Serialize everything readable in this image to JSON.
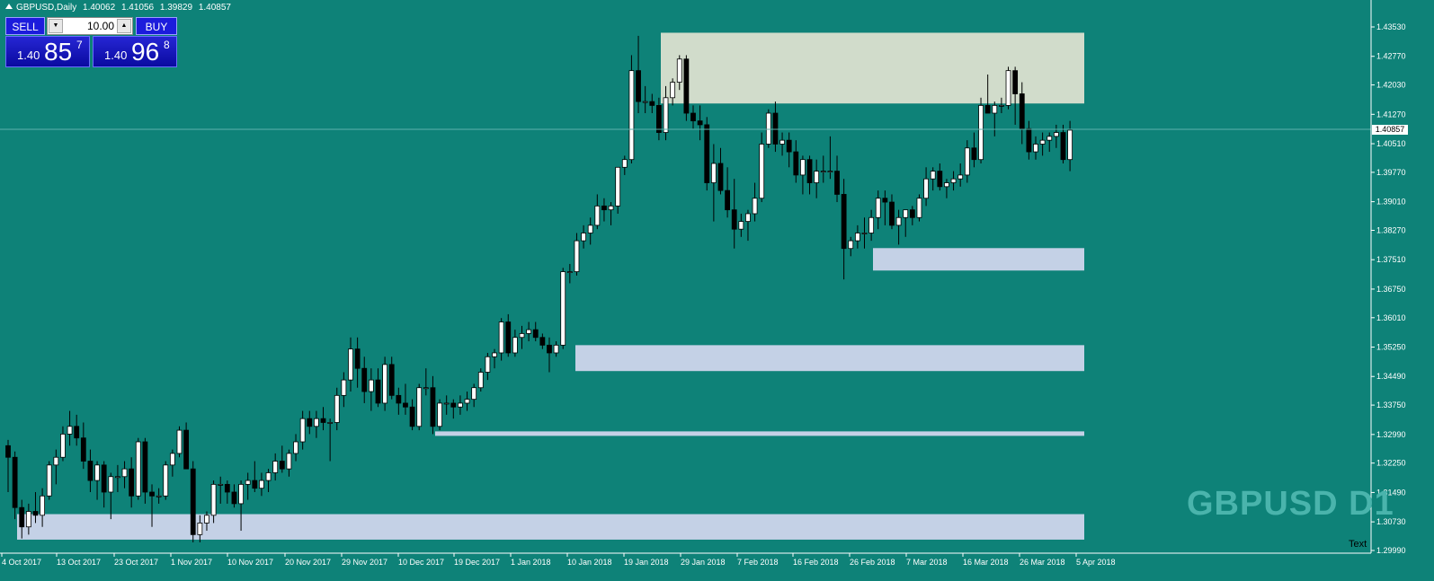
{
  "header": {
    "symbol_tf": "GBPUSD,Daily",
    "open": "1.40062",
    "high": "1.41056",
    "low": "1.39829",
    "close": "1.40857"
  },
  "trade_panel": {
    "sell_label": "SELL",
    "buy_label": "BUY",
    "volume": "10.00",
    "sell_price_small": "1.40",
    "sell_price_big": "85",
    "sell_price_sup": "7",
    "buy_price_small": "1.40",
    "buy_price_big": "96",
    "buy_price_sup": "8"
  },
  "watermark": "GBPUSD D1",
  "text_label": "Text",
  "current_price": "1.40857",
  "colors": {
    "background": "#0e8278",
    "axis_bg": "#ffffff",
    "bull_candle": "#ffffff",
    "bear_candle": "#000000",
    "supply_zone": "#d1dccb",
    "demand_zone": "#c4d1e6",
    "watermark": "#4ab4ac"
  },
  "chart_data": {
    "type": "candlestick",
    "price_ticks": [
      "1.43530",
      "1.42770",
      "1.42030",
      "1.41270",
      "1.40510",
      "1.39770",
      "1.39010",
      "1.38270",
      "1.37510",
      "1.36750",
      "1.36010",
      "1.35250",
      "1.34490",
      "1.33750",
      "1.32990",
      "1.32250",
      "1.31490",
      "1.30730",
      "1.29990"
    ],
    "date_ticks": [
      "4 Oct 2017",
      "13 Oct 2017",
      "23 Oct 2017",
      "1 Nov 2017",
      "10 Nov 2017",
      "20 Nov 2017",
      "29 Nov 2017",
      "10 Dec 2017",
      "19 Dec 2017",
      "1 Jan 2018",
      "10 Jan 2018",
      "19 Jan 2018",
      "29 Jan 2018",
      "7 Feb 2018",
      "16 Feb 2018",
      "26 Feb 2018",
      "7 Mar 2018",
      "16 Mar 2018",
      "26 Mar 2018",
      "5 Apr 2018"
    ],
    "ylim": [
      1.2975,
      1.4375
    ],
    "zones": [
      {
        "kind": "supply",
        "start": "22 Jan 2018",
        "end": "5 Apr 2018",
        "top": 1.4338,
        "bottom": 1.4155
      },
      {
        "kind": "demand",
        "start": "1 Mar 2018",
        "end": "5 Apr 2018",
        "top": 1.3781,
        "bottom": 1.3723
      },
      {
        "kind": "demand",
        "start": "11 Jan 2018",
        "end": "5 Apr 2018",
        "top": 1.353,
        "bottom": 1.3463
      },
      {
        "kind": "demand",
        "start": "20 Dec 2017",
        "end": "5 Apr 2018",
        "top": 1.3307,
        "bottom": 1.3296
      },
      {
        "kind": "demand",
        "start": "5 Oct 2017",
        "end": "5 Apr 2018",
        "top": 1.3093,
        "bottom": 1.3027
      }
    ],
    "candles": [
      [
        1.327,
        1.3285,
        1.315,
        1.324
      ],
      [
        1.324,
        1.3255,
        1.308,
        1.311
      ],
      [
        1.311,
        1.313,
        1.303,
        1.306
      ],
      [
        1.306,
        1.312,
        1.304,
        1.31
      ],
      [
        1.31,
        1.315,
        1.307,
        1.309
      ],
      [
        1.309,
        1.316,
        1.306,
        1.314
      ],
      [
        1.314,
        1.323,
        1.313,
        1.322
      ],
      [
        1.322,
        1.326,
        1.317,
        1.324
      ],
      [
        1.324,
        1.332,
        1.323,
        1.33
      ],
      [
        1.33,
        1.336,
        1.327,
        1.332
      ],
      [
        1.332,
        1.335,
        1.327,
        1.329
      ],
      [
        1.329,
        1.333,
        1.321,
        1.323
      ],
      [
        1.323,
        1.326,
        1.315,
        1.318
      ],
      [
        1.318,
        1.323,
        1.313,
        1.322
      ],
      [
        1.322,
        1.323,
        1.311,
        1.315
      ],
      [
        1.315,
        1.32,
        1.308,
        1.319
      ],
      [
        1.319,
        1.322,
        1.315,
        1.319
      ],
      [
        1.319,
        1.323,
        1.316,
        1.321
      ],
      [
        1.321,
        1.324,
        1.311,
        1.314
      ],
      [
        1.314,
        1.329,
        1.313,
        1.328
      ],
      [
        1.328,
        1.329,
        1.312,
        1.315
      ],
      [
        1.315,
        1.317,
        1.306,
        1.314
      ],
      [
        1.314,
        1.316,
        1.312,
        1.314
      ],
      [
        1.314,
        1.323,
        1.313,
        1.322
      ],
      [
        1.322,
        1.326,
        1.319,
        1.325
      ],
      [
        1.325,
        1.332,
        1.324,
        1.331
      ],
      [
        1.331,
        1.333,
        1.321,
        1.321
      ],
      [
        1.321,
        1.323,
        1.302,
        1.304
      ],
      [
        1.304,
        1.309,
        1.302,
        1.307
      ],
      [
        1.307,
        1.31,
        1.305,
        1.309
      ],
      [
        1.309,
        1.318,
        1.307,
        1.317
      ],
      [
        1.317,
        1.319,
        1.312,
        1.317
      ],
      [
        1.317,
        1.318,
        1.312,
        1.315
      ],
      [
        1.315,
        1.317,
        1.311,
        1.312
      ],
      [
        1.312,
        1.318,
        1.305,
        1.317
      ],
      [
        1.317,
        1.32,
        1.313,
        1.318
      ],
      [
        1.318,
        1.323,
        1.315,
        1.316
      ],
      [
        1.316,
        1.32,
        1.314,
        1.318
      ],
      [
        1.318,
        1.321,
        1.315,
        1.32
      ],
      [
        1.32,
        1.325,
        1.318,
        1.323
      ],
      [
        1.323,
        1.327,
        1.32,
        1.321
      ],
      [
        1.321,
        1.326,
        1.319,
        1.325
      ],
      [
        1.325,
        1.33,
        1.323,
        1.328
      ],
      [
        1.328,
        1.336,
        1.326,
        1.334
      ],
      [
        1.334,
        1.336,
        1.33,
        1.332
      ],
      [
        1.332,
        1.336,
        1.329,
        1.334
      ],
      [
        1.334,
        1.337,
        1.331,
        1.333
      ],
      [
        1.333,
        1.334,
        1.323,
        1.333
      ],
      [
        1.333,
        1.342,
        1.331,
        1.34
      ],
      [
        1.34,
        1.346,
        1.337,
        1.344
      ],
      [
        1.344,
        1.355,
        1.341,
        1.352
      ],
      [
        1.352,
        1.355,
        1.342,
        1.347
      ],
      [
        1.347,
        1.35,
        1.338,
        1.341
      ],
      [
        1.341,
        1.347,
        1.336,
        1.344
      ],
      [
        1.344,
        1.347,
        1.337,
        1.338
      ],
      [
        1.338,
        1.35,
        1.336,
        1.348
      ],
      [
        1.348,
        1.35,
        1.339,
        1.34
      ],
      [
        1.34,
        1.342,
        1.335,
        1.338
      ],
      [
        1.338,
        1.343,
        1.335,
        1.337
      ],
      [
        1.337,
        1.339,
        1.331,
        1.332
      ],
      [
        1.332,
        1.343,
        1.331,
        1.342
      ],
      [
        1.342,
        1.347,
        1.34,
        1.342
      ],
      [
        1.342,
        1.345,
        1.33,
        1.332
      ],
      [
        1.332,
        1.339,
        1.331,
        1.338
      ],
      [
        1.338,
        1.34,
        1.335,
        1.338
      ],
      [
        1.338,
        1.339,
        1.334,
        1.337
      ],
      [
        1.337,
        1.34,
        1.335,
        1.338
      ],
      [
        1.338,
        1.341,
        1.336,
        1.339
      ],
      [
        1.339,
        1.343,
        1.337,
        1.342
      ],
      [
        1.342,
        1.347,
        1.341,
        1.346
      ],
      [
        1.346,
        1.351,
        1.344,
        1.35
      ],
      [
        1.35,
        1.352,
        1.347,
        1.351
      ],
      [
        1.351,
        1.36,
        1.349,
        1.359
      ],
      [
        1.359,
        1.361,
        1.35,
        1.351
      ],
      [
        1.351,
        1.357,
        1.35,
        1.355
      ],
      [
        1.355,
        1.358,
        1.352,
        1.356
      ],
      [
        1.356,
        1.359,
        1.354,
        1.357
      ],
      [
        1.357,
        1.359,
        1.354,
        1.355
      ],
      [
        1.355,
        1.356,
        1.352,
        1.353
      ],
      [
        1.353,
        1.355,
        1.346,
        1.351
      ],
      [
        1.351,
        1.354,
        1.35,
        1.353
      ],
      [
        1.353,
        1.373,
        1.352,
        1.372
      ],
      [
        1.372,
        1.374,
        1.369,
        1.372
      ],
      [
        1.372,
        1.382,
        1.371,
        1.38
      ],
      [
        1.38,
        1.384,
        1.378,
        1.382
      ],
      [
        1.382,
        1.386,
        1.379,
        1.384
      ],
      [
        1.384,
        1.392,
        1.383,
        1.389
      ],
      [
        1.389,
        1.391,
        1.385,
        1.388
      ],
      [
        1.388,
        1.39,
        1.384,
        1.389
      ],
      [
        1.389,
        1.399,
        1.387,
        1.399
      ],
      [
        1.399,
        1.402,
        1.397,
        1.401
      ],
      [
        1.401,
        1.428,
        1.4,
        1.424
      ],
      [
        1.424,
        1.433,
        1.413,
        1.416
      ],
      [
        1.416,
        1.42,
        1.413,
        1.416
      ],
      [
        1.416,
        1.418,
        1.413,
        1.415
      ],
      [
        1.415,
        1.417,
        1.406,
        1.408
      ],
      [
        1.408,
        1.42,
        1.406,
        1.417
      ],
      [
        1.417,
        1.422,
        1.415,
        1.421
      ],
      [
        1.421,
        1.428,
        1.419,
        1.427
      ],
      [
        1.427,
        1.428,
        1.411,
        1.413
      ],
      [
        1.413,
        1.415,
        1.409,
        1.411
      ],
      [
        1.411,
        1.415,
        1.406,
        1.41
      ],
      [
        1.41,
        1.412,
        1.393,
        1.395
      ],
      [
        1.395,
        1.405,
        1.385,
        1.4
      ],
      [
        1.4,
        1.404,
        1.392,
        1.393
      ],
      [
        1.393,
        1.399,
        1.386,
        1.388
      ],
      [
        1.388,
        1.396,
        1.378,
        1.383
      ],
      [
        1.383,
        1.387,
        1.381,
        1.385
      ],
      [
        1.385,
        1.388,
        1.38,
        1.387
      ],
      [
        1.387,
        1.395,
        1.385,
        1.391
      ],
      [
        1.391,
        1.408,
        1.39,
        1.405
      ],
      [
        1.405,
        1.414,
        1.404,
        1.413
      ],
      [
        1.413,
        1.416,
        1.403,
        1.405
      ],
      [
        1.405,
        1.408,
        1.402,
        1.406
      ],
      [
        1.406,
        1.408,
        1.399,
        1.403
      ],
      [
        1.403,
        1.406,
        1.395,
        1.397
      ],
      [
        1.397,
        1.402,
        1.392,
        1.401
      ],
      [
        1.401,
        1.402,
        1.392,
        1.395
      ],
      [
        1.395,
        1.401,
        1.391,
        1.398
      ],
      [
        1.398,
        1.402,
        1.395,
        1.398
      ],
      [
        1.398,
        1.407,
        1.396,
        1.398
      ],
      [
        1.398,
        1.402,
        1.39,
        1.392
      ],
      [
        1.392,
        1.396,
        1.37,
        1.378
      ],
      [
        1.378,
        1.381,
        1.376,
        1.38
      ],
      [
        1.38,
        1.384,
        1.378,
        1.382
      ],
      [
        1.382,
        1.386,
        1.378,
        1.382
      ],
      [
        1.382,
        1.388,
        1.38,
        1.386
      ],
      [
        1.386,
        1.393,
        1.383,
        1.391
      ],
      [
        1.391,
        1.393,
        1.384,
        1.39
      ],
      [
        1.39,
        1.392,
        1.383,
        1.384
      ],
      [
        1.384,
        1.388,
        1.379,
        1.386
      ],
      [
        1.386,
        1.388,
        1.381,
        1.388
      ],
      [
        1.388,
        1.389,
        1.384,
        1.386
      ],
      [
        1.386,
        1.392,
        1.385,
        1.391
      ],
      [
        1.391,
        1.399,
        1.389,
        1.396
      ],
      [
        1.396,
        1.399,
        1.393,
        1.398
      ],
      [
        1.398,
        1.4,
        1.393,
        1.394
      ],
      [
        1.394,
        1.396,
        1.391,
        1.395
      ],
      [
        1.395,
        1.398,
        1.393,
        1.396
      ],
      [
        1.396,
        1.4,
        1.394,
        1.397
      ],
      [
        1.397,
        1.406,
        1.395,
        1.404
      ],
      [
        1.404,
        1.408,
        1.399,
        1.401
      ],
      [
        1.401,
        1.417,
        1.4,
        1.415
      ],
      [
        1.415,
        1.423,
        1.414,
        1.413
      ],
      [
        1.413,
        1.416,
        1.407,
        1.415
      ],
      [
        1.415,
        1.417,
        1.413,
        1.415
      ],
      [
        1.415,
        1.425,
        1.414,
        1.424
      ],
      [
        1.424,
        1.425,
        1.41,
        1.418
      ],
      [
        1.418,
        1.421,
        1.405,
        1.409
      ],
      [
        1.409,
        1.411,
        1.401,
        1.403
      ],
      [
        1.403,
        1.407,
        1.401,
        1.405
      ],
      [
        1.405,
        1.408,
        1.402,
        1.406
      ],
      [
        1.406,
        1.408,
        1.403,
        1.407
      ],
      [
        1.407,
        1.41,
        1.404,
        1.408
      ],
      [
        1.408,
        1.41,
        1.4,
        1.401
      ],
      [
        1.401,
        1.411,
        1.398,
        1.4086
      ]
    ]
  }
}
